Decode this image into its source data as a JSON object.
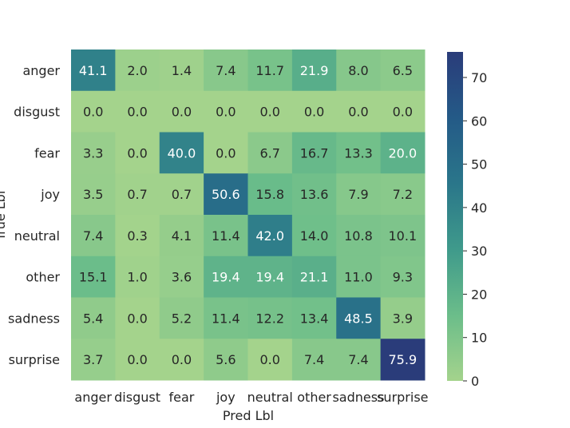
{
  "chart_data": {
    "type": "heatmap",
    "xlabel": "Pred Lbl",
    "ylabel": "True Lbl",
    "x_categories": [
      "anger",
      "disgust",
      "fear",
      "joy",
      "neutral",
      "other",
      "sadness",
      "surprise"
    ],
    "y_categories": [
      "anger",
      "disgust",
      "fear",
      "joy",
      "neutral",
      "other",
      "sadness",
      "surprise"
    ],
    "values": [
      [
        41.1,
        2.0,
        1.4,
        7.4,
        11.7,
        21.9,
        8.0,
        6.5
      ],
      [
        0.0,
        0.0,
        0.0,
        0.0,
        0.0,
        0.0,
        0.0,
        0.0
      ],
      [
        3.3,
        0.0,
        40.0,
        0.0,
        6.7,
        16.7,
        13.3,
        20.0
      ],
      [
        3.5,
        0.7,
        0.7,
        50.6,
        15.8,
        13.6,
        7.9,
        7.2
      ],
      [
        7.4,
        0.3,
        4.1,
        11.4,
        42.0,
        14.0,
        10.8,
        10.1
      ],
      [
        15.1,
        1.0,
        3.6,
        19.4,
        19.4,
        21.1,
        11.0,
        9.3
      ],
      [
        5.4,
        0.0,
        5.2,
        11.4,
        12.2,
        13.4,
        48.5,
        3.9
      ],
      [
        3.7,
        0.0,
        0.0,
        5.6,
        0.0,
        7.4,
        7.4,
        75.9
      ]
    ],
    "value_format": "one decimal",
    "colormap": "crest",
    "colormap_stops": [
      "#a4d38c",
      "#6bbd8a",
      "#3f9a8b",
      "#2a768a",
      "#245a87",
      "#2a3c7a"
    ],
    "colorbar": {
      "range": [
        0,
        75.9
      ],
      "ticks": [
        0,
        10,
        20,
        30,
        40,
        50,
        60,
        70
      ]
    }
  }
}
